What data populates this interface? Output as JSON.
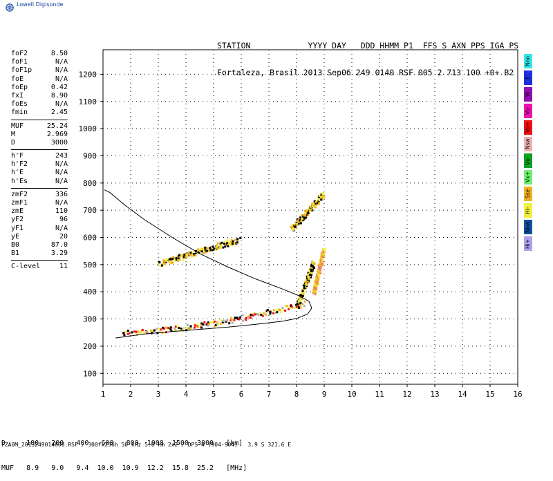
{
  "app": {
    "brand": "Lowell Digisonde"
  },
  "header": {
    "line1": "STATION            YYYY DAY   DDD HHMM P1  FFS S AXN PPS IGA PS",
    "line2": "Fortaleza, Brasil 2013 Sep06 249 0140 RSF 005 2 713 100 +0+ B2"
  },
  "params": [
    {
      "name": "foF2",
      "value": "8.50"
    },
    {
      "name": "foF1",
      "value": "N/A"
    },
    {
      "name": "foF1p",
      "value": "N/A"
    },
    {
      "name": "foE",
      "value": "N/A"
    },
    {
      "name": "foEp",
      "value": "0.42"
    },
    {
      "name": "fxI",
      "value": "8.90"
    },
    {
      "name": "foEs",
      "value": "N/A"
    },
    {
      "name": "fmin",
      "value": "2.45"
    },
    {
      "name": "MUF",
      "value": "25.24"
    },
    {
      "name": "M",
      "value": "2.969"
    },
    {
      "name": "D",
      "value": "3000"
    },
    {
      "name": "h'F",
      "value": "243"
    },
    {
      "name": "h'F2",
      "value": "N/A"
    },
    {
      "name": "h'E",
      "value": "N/A"
    },
    {
      "name": "h'Es",
      "value": "N/A"
    },
    {
      "name": "zmF2",
      "value": "336"
    },
    {
      "name": "zmF1",
      "value": "N/A"
    },
    {
      "name": "zmE",
      "value": "110"
    },
    {
      "name": "yF2",
      "value": "96"
    },
    {
      "name": "yF1",
      "value": "N/A"
    },
    {
      "name": "yE",
      "value": "20"
    },
    {
      "name": "B0",
      "value": "87.0"
    },
    {
      "name": "B1",
      "value": "3.29"
    },
    {
      "name": "C-level",
      "value": "11"
    }
  ],
  "sidebar": [
    {
      "label": "Nno",
      "color": "#30e8e8"
    },
    {
      "label": "E",
      "color": "#2030e0"
    },
    {
      "label": "W",
      "color": "#9010b0"
    },
    {
      "label": "Vo-",
      "color": "#f010b0"
    },
    {
      "label": "Vo+",
      "color": "#f01010"
    },
    {
      "label": "Nsw",
      "color": "#f0b0b0"
    },
    {
      "label": "Vx-",
      "color": "#10a020"
    },
    {
      "label": "Vx+",
      "color": "#70f070"
    },
    {
      "label": "Sse",
      "color": "#f0b020"
    },
    {
      "label": "Hi-",
      "color": "#f0f040"
    },
    {
      "label": "Nnw",
      "color": "#1050a0"
    },
    {
      "label": "Hi+",
      "color": "#b0a0f0"
    }
  ],
  "muf_table": {
    "row1": "D     100   200   400   600   800  1000  1500  3000   [km]",
    "row2": "MUF   8.9   9.0   9.4  10.0  10.9  12.2  15.8  25.2   [MHz]"
  },
  "footer": "FZA0M_2013249014000.RSF / 300fx256h 50 kHz 5.0 km 2x2 / DPS-4 (904-904)   3.9 S 321.6 E",
  "chart_data": {
    "type": "scatter",
    "x_ticks": [
      "1",
      "2",
      "3",
      "4",
      "5",
      "6",
      "7",
      "8",
      "9",
      "10",
      "11",
      "12",
      "13",
      "14",
      "15",
      "16"
    ],
    "y_ticks": [
      "100",
      "200",
      "300",
      "400",
      "500",
      "600",
      "700",
      "800",
      "900",
      "1000",
      "1100",
      "1200"
    ],
    "xlim": [
      1,
      16
    ],
    "ylim": [
      60,
      1290
    ],
    "grid": true,
    "profile_curve": {
      "name": "electron density profile",
      "color": "#000000",
      "points": [
        [
          1.45,
          230
        ],
        [
          2.5,
          245
        ],
        [
          4.0,
          258
        ],
        [
          5.5,
          270
        ],
        [
          6.5,
          280
        ],
        [
          7.5,
          292
        ],
        [
          8.0,
          302
        ],
        [
          8.4,
          318
        ],
        [
          8.55,
          340
        ],
        [
          8.45,
          365
        ],
        [
          8.1,
          385
        ],
        [
          7.5,
          410
        ],
        [
          6.5,
          448
        ],
        [
          5.5,
          492
        ],
        [
          4.5,
          540
        ],
        [
          3.5,
          600
        ],
        [
          2.5,
          665
        ],
        [
          1.8,
          718
        ],
        [
          1.25,
          765
        ],
        [
          1.05,
          775
        ]
      ]
    },
    "traces": [
      {
        "name": "O-trace first hop",
        "x_start": 1.7,
        "x_end": 8.3,
        "y_start": 252,
        "y_end": 360,
        "colors": [
          "#f01010",
          "#f0b020",
          "#000000",
          "#f0f040",
          "#b0b0b0"
        ]
      },
      {
        "name": "O-trace steep rise",
        "x_start": 8.0,
        "x_end": 8.6,
        "y_start": 350,
        "y_end": 510,
        "colors": [
          "#000000",
          "#f0b020",
          "#f0f040"
        ]
      },
      {
        "name": "X-trace",
        "x_start": 8.6,
        "x_end": 8.95,
        "y_start": 400,
        "y_end": 555,
        "colors": [
          "#f0b020",
          "#f08060",
          "#f0f040"
        ]
      },
      {
        "name": "multiple hop echo",
        "x_start": 3.0,
        "x_end": 5.9,
        "y_start": 505,
        "y_end": 595,
        "colors": [
          "#f0f040",
          "#000000",
          "#f0b020"
        ]
      },
      {
        "name": "upper hop echo",
        "x_start": 7.8,
        "x_end": 8.95,
        "y_start": 635,
        "y_end": 760,
        "colors": [
          "#000000",
          "#f0b020",
          "#f0f040"
        ]
      }
    ]
  }
}
